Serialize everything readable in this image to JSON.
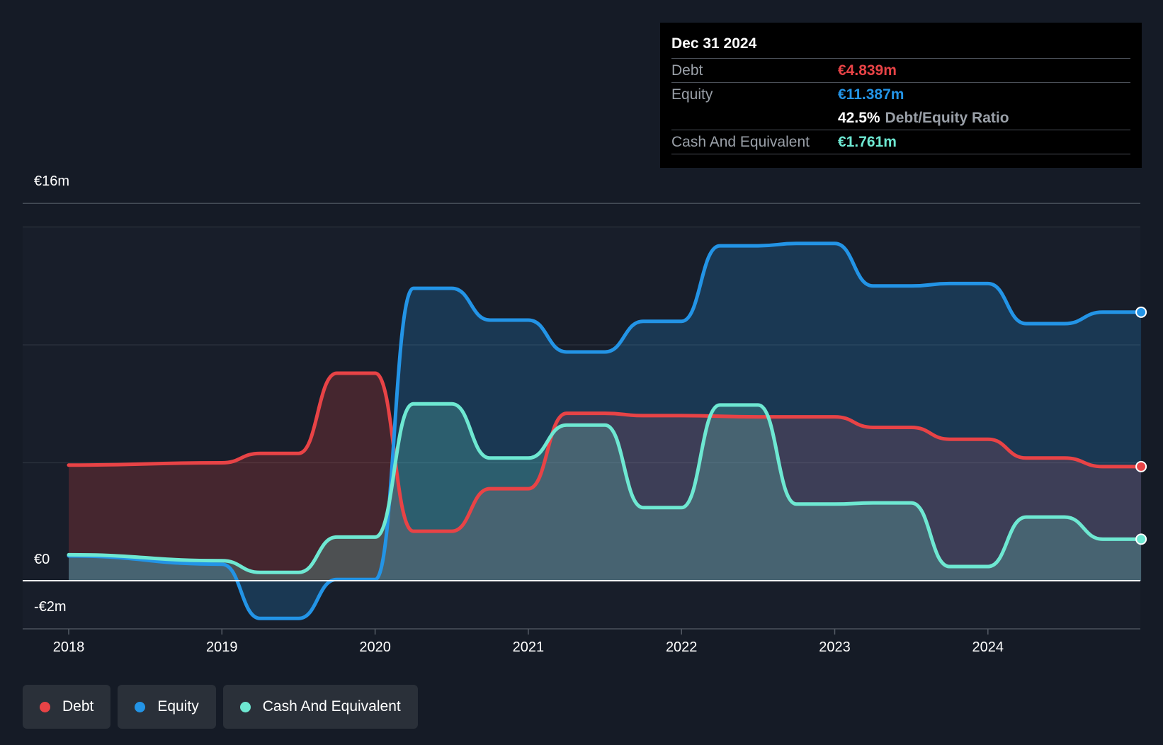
{
  "tooltip": {
    "date": "Dec 31 2024",
    "debt_label": "Debt",
    "debt_value": "€4.839m",
    "equity_label": "Equity",
    "equity_value": "€11.387m",
    "ratio_value": "42.5%",
    "ratio_label": "Debt/Equity Ratio",
    "cash_label": "Cash And Equivalent",
    "cash_value": "€1.761m"
  },
  "legend": {
    "debt": "Debt",
    "equity": "Equity",
    "cash": "Cash And Equivalent"
  },
  "colors": {
    "background": "#151b26",
    "debt": "#e84346",
    "equity": "#2394e6",
    "cash": "#6ee8d2"
  },
  "chart_data": {
    "type": "area",
    "title": "",
    "xlabel": "",
    "ylabel": "",
    "ylim": [
      -2,
      16
    ],
    "y_ticks": [
      {
        "value": 16,
        "label": "€16m"
      },
      {
        "value": 0,
        "label": "€0"
      },
      {
        "value": -2,
        "label": "-€2m"
      }
    ],
    "x_ticks": [
      {
        "value": 2018,
        "label": "2018"
      },
      {
        "value": 2019,
        "label": "2019"
      },
      {
        "value": 2020,
        "label": "2020"
      },
      {
        "value": 2021,
        "label": "2021"
      },
      {
        "value": 2022,
        "label": "2022"
      },
      {
        "value": 2023,
        "label": "2023"
      },
      {
        "value": 2024,
        "label": "2024"
      }
    ],
    "xlim": [
      2017.7,
      2025.0
    ],
    "grid": true,
    "legend_position": "bottom-left",
    "series": [
      {
        "name": "Debt",
        "color": "#e84346",
        "points": [
          [
            2018.0,
            4.9
          ],
          [
            2019.0,
            5.0
          ],
          [
            2019.25,
            5.4
          ],
          [
            2019.5,
            5.4
          ],
          [
            2019.75,
            8.8
          ],
          [
            2020.0,
            8.8
          ],
          [
            2020.25,
            2.1
          ],
          [
            2020.5,
            2.1
          ],
          [
            2020.75,
            3.9
          ],
          [
            2021.0,
            3.9
          ],
          [
            2021.25,
            7.1
          ],
          [
            2021.5,
            7.1
          ],
          [
            2021.75,
            7.0
          ],
          [
            2022.0,
            7.0
          ],
          [
            2022.5,
            6.95
          ],
          [
            2022.75,
            6.95
          ],
          [
            2023.0,
            6.95
          ],
          [
            2023.25,
            6.5
          ],
          [
            2023.5,
            6.5
          ],
          [
            2023.75,
            6.0
          ],
          [
            2024.0,
            6.0
          ],
          [
            2024.25,
            5.2
          ],
          [
            2024.5,
            5.2
          ],
          [
            2024.75,
            4.839
          ],
          [
            2025.0,
            4.839
          ]
        ]
      },
      {
        "name": "Equity",
        "color": "#2394e6",
        "points": [
          [
            2018.0,
            1.05
          ],
          [
            2019.0,
            0.7
          ],
          [
            2019.25,
            -1.6
          ],
          [
            2019.5,
            -1.6
          ],
          [
            2019.75,
            0.05
          ],
          [
            2020.0,
            0.05
          ],
          [
            2020.25,
            12.4
          ],
          [
            2020.5,
            12.4
          ],
          [
            2020.75,
            11.05
          ],
          [
            2021.0,
            11.05
          ],
          [
            2021.25,
            9.7
          ],
          [
            2021.5,
            9.7
          ],
          [
            2021.75,
            11.0
          ],
          [
            2022.0,
            11.0
          ],
          [
            2022.25,
            14.2
          ],
          [
            2022.5,
            14.2
          ],
          [
            2022.75,
            14.3
          ],
          [
            2023.0,
            14.3
          ],
          [
            2023.25,
            12.5
          ],
          [
            2023.5,
            12.5
          ],
          [
            2023.75,
            12.6
          ],
          [
            2024.0,
            12.6
          ],
          [
            2024.25,
            10.9
          ],
          [
            2024.5,
            10.9
          ],
          [
            2024.75,
            11.387
          ],
          [
            2025.0,
            11.387
          ]
        ]
      },
      {
        "name": "Cash And Equivalent",
        "color": "#6ee8d2",
        "points": [
          [
            2018.0,
            1.1
          ],
          [
            2019.0,
            0.85
          ],
          [
            2019.25,
            0.35
          ],
          [
            2019.5,
            0.35
          ],
          [
            2019.75,
            1.85
          ],
          [
            2020.0,
            1.85
          ],
          [
            2020.25,
            7.5
          ],
          [
            2020.5,
            7.5
          ],
          [
            2020.75,
            5.2
          ],
          [
            2021.0,
            5.2
          ],
          [
            2021.25,
            6.6
          ],
          [
            2021.5,
            6.6
          ],
          [
            2021.75,
            3.1
          ],
          [
            2022.0,
            3.1
          ],
          [
            2022.25,
            7.45
          ],
          [
            2022.5,
            7.45
          ],
          [
            2022.75,
            3.25
          ],
          [
            2023.0,
            3.25
          ],
          [
            2023.25,
            3.3
          ],
          [
            2023.5,
            3.3
          ],
          [
            2023.75,
            0.6
          ],
          [
            2024.0,
            0.6
          ],
          [
            2024.25,
            2.7
          ],
          [
            2024.5,
            2.7
          ],
          [
            2024.75,
            1.761
          ],
          [
            2025.0,
            1.761
          ]
        ]
      }
    ]
  }
}
